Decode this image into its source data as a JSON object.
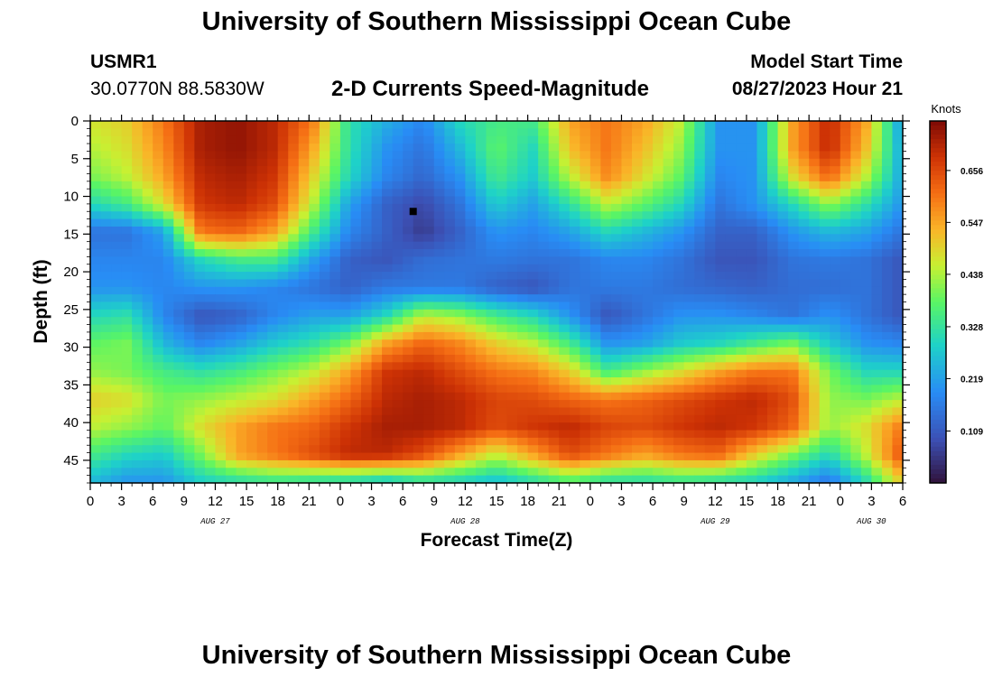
{
  "header": {
    "title": "University of Southern Mississippi Ocean Cube",
    "station_id": "USMR1",
    "coordinates": "30.0770N  88.5830W",
    "subtitle": "2-D Currents Speed-Magnitude",
    "model_start_label": "Model Start Time",
    "model_start_value": "08/27/2023 Hour 21"
  },
  "footer": {
    "title": "University of Southern Mississippi Ocean Cube"
  },
  "chart_data": {
    "type": "heatmap",
    "title": "2-D Currents Speed-Magnitude",
    "xlabel": "Forecast Time(Z)",
    "ylabel": "Depth (ft)",
    "xlim": [
      0,
      78
    ],
    "ylim": [
      0,
      48
    ],
    "x_tick_values": [
      0,
      3,
      6,
      9,
      12,
      15,
      18,
      21,
      24,
      27,
      30,
      33,
      36,
      39,
      42,
      45,
      48,
      51,
      54,
      57,
      60,
      63,
      66,
      69,
      72,
      75,
      78
    ],
    "x_tick_labels": [
      "0",
      "3",
      "6",
      "9",
      "12",
      "15",
      "18",
      "21",
      "0",
      "3",
      "6",
      "9",
      "12",
      "15",
      "18",
      "21",
      "0",
      "3",
      "6",
      "9",
      "12",
      "15",
      "18",
      "21",
      "0",
      "3",
      "6"
    ],
    "date_labels": [
      {
        "x": 12,
        "label": "AUG 27"
      },
      {
        "x": 36,
        "label": "AUG 28"
      },
      {
        "x": 60,
        "label": "AUG 29"
      },
      {
        "x": 75,
        "label": "AUG 30"
      }
    ],
    "y_tick_values": [
      0,
      5,
      10,
      15,
      20,
      25,
      30,
      35,
      40,
      45
    ],
    "colorbar": {
      "label": "Knots",
      "min": 0.0,
      "max": 0.76,
      "ticks": [
        0.109,
        0.219,
        0.328,
        0.438,
        0.547,
        0.656
      ]
    },
    "marker": {
      "x": 31,
      "y": 12
    },
    "value_field": [
      [
        0.47,
        0.5,
        0.6,
        0.72,
        0.74,
        0.7,
        0.6,
        0.32,
        0.24,
        0.18,
        0.3,
        0.35,
        0.35,
        0.55,
        0.6,
        0.55,
        0.45,
        0.2,
        0.2,
        0.55,
        0.7,
        0.55,
        0.2
      ],
      [
        0.44,
        0.48,
        0.58,
        0.72,
        0.74,
        0.7,
        0.55,
        0.32,
        0.2,
        0.15,
        0.25,
        0.38,
        0.3,
        0.52,
        0.6,
        0.52,
        0.42,
        0.2,
        0.2,
        0.55,
        0.7,
        0.52,
        0.22
      ],
      [
        0.4,
        0.45,
        0.55,
        0.7,
        0.72,
        0.68,
        0.5,
        0.3,
        0.18,
        0.13,
        0.2,
        0.35,
        0.28,
        0.45,
        0.58,
        0.48,
        0.38,
        0.18,
        0.2,
        0.48,
        0.62,
        0.45,
        0.22
      ],
      [
        0.3,
        0.35,
        0.48,
        0.68,
        0.7,
        0.65,
        0.45,
        0.22,
        0.12,
        0.08,
        0.15,
        0.28,
        0.22,
        0.32,
        0.45,
        0.38,
        0.3,
        0.15,
        0.2,
        0.3,
        0.42,
        0.32,
        0.2
      ],
      [
        0.15,
        0.15,
        0.22,
        0.6,
        0.62,
        0.55,
        0.35,
        0.18,
        0.12,
        0.06,
        0.12,
        0.2,
        0.18,
        0.22,
        0.3,
        0.25,
        0.2,
        0.12,
        0.12,
        0.2,
        0.25,
        0.22,
        0.15
      ],
      [
        0.18,
        0.18,
        0.18,
        0.3,
        0.35,
        0.35,
        0.22,
        0.12,
        0.1,
        0.14,
        0.15,
        0.16,
        0.15,
        0.15,
        0.18,
        0.18,
        0.15,
        0.1,
        0.1,
        0.15,
        0.16,
        0.15,
        0.1
      ],
      [
        0.2,
        0.2,
        0.18,
        0.2,
        0.2,
        0.18,
        0.15,
        0.12,
        0.16,
        0.16,
        0.16,
        0.12,
        0.1,
        0.15,
        0.16,
        0.16,
        0.14,
        0.13,
        0.12,
        0.14,
        0.14,
        0.15,
        0.1
      ],
      [
        0.3,
        0.32,
        0.18,
        0.1,
        0.12,
        0.18,
        0.22,
        0.22,
        0.3,
        0.45,
        0.42,
        0.35,
        0.3,
        0.2,
        0.1,
        0.15,
        0.2,
        0.2,
        0.18,
        0.15,
        0.2,
        0.15,
        0.1
      ],
      [
        0.38,
        0.4,
        0.25,
        0.18,
        0.22,
        0.28,
        0.32,
        0.4,
        0.55,
        0.62,
        0.58,
        0.5,
        0.45,
        0.35,
        0.2,
        0.22,
        0.28,
        0.3,
        0.35,
        0.4,
        0.28,
        0.2,
        0.18
      ],
      [
        0.42,
        0.4,
        0.35,
        0.32,
        0.35,
        0.4,
        0.45,
        0.55,
        0.68,
        0.7,
        0.65,
        0.6,
        0.58,
        0.5,
        0.35,
        0.42,
        0.48,
        0.55,
        0.6,
        0.6,
        0.4,
        0.3,
        0.3
      ],
      [
        0.5,
        0.48,
        0.4,
        0.42,
        0.45,
        0.48,
        0.55,
        0.62,
        0.7,
        0.72,
        0.7,
        0.66,
        0.65,
        0.62,
        0.6,
        0.62,
        0.65,
        0.68,
        0.7,
        0.65,
        0.42,
        0.4,
        0.45
      ],
      [
        0.45,
        0.42,
        0.38,
        0.48,
        0.55,
        0.6,
        0.62,
        0.68,
        0.72,
        0.72,
        0.7,
        0.65,
        0.68,
        0.7,
        0.66,
        0.65,
        0.68,
        0.7,
        0.68,
        0.62,
        0.42,
        0.48,
        0.6
      ],
      [
        0.35,
        0.3,
        0.28,
        0.4,
        0.55,
        0.6,
        0.65,
        0.7,
        0.7,
        0.65,
        0.55,
        0.45,
        0.55,
        0.65,
        0.6,
        0.55,
        0.6,
        0.62,
        0.5,
        0.4,
        0.3,
        0.45,
        0.65
      ],
      [
        0.25,
        0.2,
        0.2,
        0.28,
        0.3,
        0.32,
        0.3,
        0.28,
        0.25,
        0.3,
        0.28,
        0.25,
        0.3,
        0.35,
        0.3,
        0.3,
        0.32,
        0.3,
        0.28,
        0.22,
        0.15,
        0.3,
        0.5
      ]
    ]
  }
}
